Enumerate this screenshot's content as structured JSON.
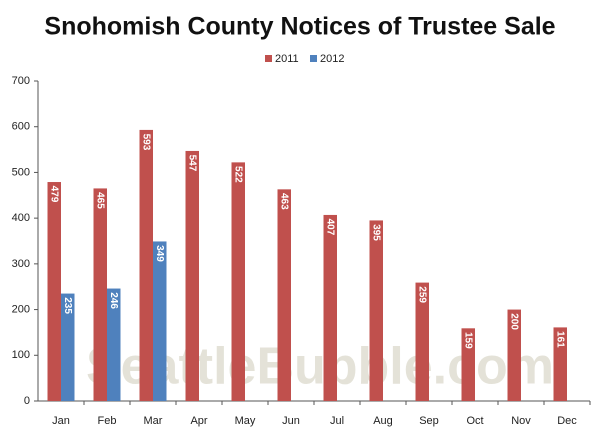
{
  "chart_data": {
    "type": "bar",
    "title": "Snohomish County Notices of Trustee Sale",
    "watermark": "SeattleBubble.com",
    "categories": [
      "Jan",
      "Feb",
      "Mar",
      "Apr",
      "May",
      "Jun",
      "Jul",
      "Aug",
      "Sep",
      "Oct",
      "Nov",
      "Dec"
    ],
    "series": [
      {
        "name": "2011",
        "color": "#c0504d",
        "values": [
          479,
          465,
          593,
          547,
          522,
          463,
          407,
          395,
          259,
          159,
          200,
          161
        ]
      },
      {
        "name": "2012",
        "color": "#4f81bd",
        "values": [
          235,
          246,
          349,
          null,
          null,
          null,
          null,
          null,
          null,
          null,
          null,
          null
        ]
      }
    ],
    "ylim": [
      0,
      700
    ],
    "yticks": [
      0,
      100,
      200,
      300,
      400,
      500,
      600,
      700
    ],
    "grid": false
  }
}
